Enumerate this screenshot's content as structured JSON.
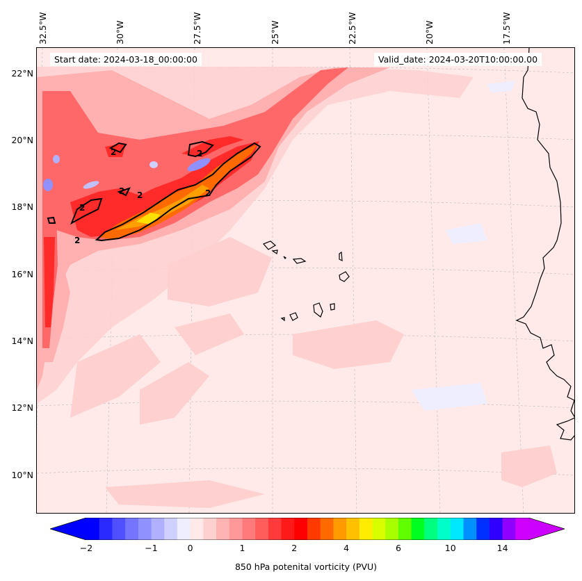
{
  "map": {
    "start_date": "Start date: 2024-03-18_00:00:00",
    "valid_date": "Valid_date: 2024-03-20T10:00:00.00",
    "lon_labels": [
      "32.5°W",
      "30°W",
      "27.5°W",
      "25°W",
      "22.5°W",
      "20°W",
      "17.5°W"
    ],
    "lat_labels": [
      "22°N",
      "20°N",
      "18°N",
      "16°N",
      "14°N",
      "12°N",
      "10°N"
    ],
    "contour_label": "2",
    "projection": "Lambert conformal",
    "extent": {
      "lon": [
        -33,
        -16.5
      ],
      "lat": [
        9,
        22.8
      ]
    }
  },
  "colorbar": {
    "label": "850 hPa potenital vorticity (PVU)",
    "ticks": [
      "−2",
      "−1",
      "0",
      "1",
      "2",
      "4",
      "6",
      "10",
      "14"
    ],
    "colors": [
      "#0000ff",
      "#2a2aff",
      "#5050ff",
      "#7474ff",
      "#9090ff",
      "#b0b0ff",
      "#d0d0ff",
      "#eeeeff",
      "#ffe9e9",
      "#ffd0d0",
      "#ffb4b4",
      "#ff9898",
      "#ff7a7a",
      "#ff5c5c",
      "#ff3a3a",
      "#ff1a1a",
      "#ff0000",
      "#ff3a00",
      "#ff6a00",
      "#ff9a00",
      "#ffc000",
      "#ffec00",
      "#d8ff00",
      "#a8ff00",
      "#60ff00",
      "#00ff20",
      "#00ff80",
      "#00ffc8",
      "#00e8ff",
      "#0090ff",
      "#0030ff",
      "#3000ff",
      "#9000ff",
      "#d000ff"
    ],
    "extend_low": "#0000ff",
    "extend_high": "#cc00ff"
  }
}
